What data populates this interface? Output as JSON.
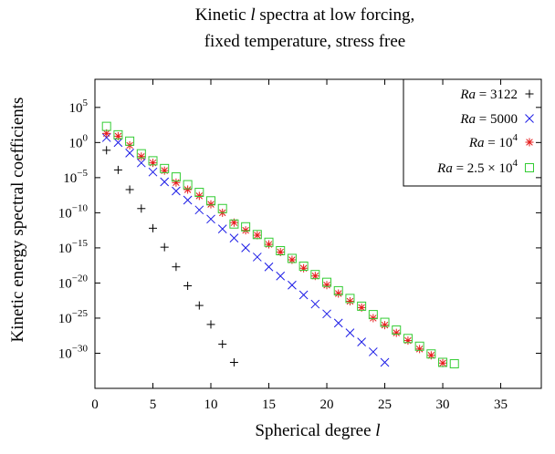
{
  "chart_data": {
    "type": "scatter",
    "title": [
      "Kinetic l spectra at low forcing,",
      "fixed temperature, stress free"
    ],
    "xlabel": "Spherical degree l",
    "ylabel": "Kinetic energy spectral coefficients",
    "xlim": [
      0,
      38.5
    ],
    "ylim_log10": [
      -35,
      9
    ],
    "y_scale": "log",
    "grid": false,
    "legend_position": "top-right",
    "x_ticks": [
      0,
      5,
      10,
      15,
      20,
      25,
      30,
      35
    ],
    "y_ticks": [
      {
        "exp": 5,
        "label_base": "10",
        "label_exp": "5"
      },
      {
        "exp": 0,
        "label_base": "10",
        "label_exp": "0"
      },
      {
        "exp": -5,
        "label_base": "10",
        "label_exp": "−5"
      },
      {
        "exp": -10,
        "label_base": "10",
        "label_exp": "−10"
      },
      {
        "exp": -15,
        "label_base": "10",
        "label_exp": "−15"
      },
      {
        "exp": -20,
        "label_base": "10",
        "label_exp": "−20"
      },
      {
        "exp": -25,
        "label_base": "10",
        "label_exp": "−25"
      },
      {
        "exp": -30,
        "label_base": "10",
        "label_exp": "−30"
      }
    ],
    "series": [
      {
        "name": "Ra = 3122",
        "legend": {
          "ra": "Ra",
          "eq": " = 3122",
          "sup": ""
        },
        "marker": "plus",
        "color": "#000000",
        "x": [
          1,
          2,
          3,
          4,
          5,
          6,
          7,
          8,
          9,
          10,
          11,
          12
        ],
        "log10_y": [
          -1.1,
          -3.9,
          -6.7,
          -9.4,
          -12.2,
          -14.9,
          -17.7,
          -20.4,
          -23.2,
          -25.9,
          -28.7,
          -31.3
        ]
      },
      {
        "name": "Ra = 5000",
        "legend": {
          "ra": "Ra",
          "eq": " = 5000",
          "sup": ""
        },
        "marker": "cross",
        "color": "#1a1ae6",
        "x": [
          1,
          2,
          3,
          4,
          5,
          6,
          7,
          8,
          9,
          10,
          11,
          12,
          13,
          14,
          15,
          16,
          17,
          18,
          19,
          20,
          21,
          22,
          23,
          24,
          25
        ],
        "log10_y": [
          0.7,
          0.0,
          -1.5,
          -2.9,
          -4.2,
          -5.6,
          -6.9,
          -8.2,
          -9.6,
          -10.9,
          -12.3,
          -13.6,
          -15.0,
          -16.3,
          -17.7,
          -19.0,
          -20.3,
          -21.7,
          -23.0,
          -24.4,
          -25.7,
          -27.1,
          -28.4,
          -29.8,
          -31.3
        ]
      },
      {
        "name": "Ra = 10^4",
        "legend": {
          "ra": "Ra",
          "eq": " = 10",
          "sup": "4"
        },
        "marker": "star",
        "color": "#e61a1a",
        "x": [
          1,
          2,
          3,
          4,
          5,
          6,
          7,
          8,
          9,
          10,
          11,
          12,
          13,
          14,
          15,
          16,
          17,
          18,
          19,
          20,
          21,
          22,
          23,
          24,
          25,
          26,
          27,
          28,
          29,
          30
        ],
        "log10_y": [
          1.3,
          0.9,
          -0.4,
          -2.0,
          -2.9,
          -4.0,
          -5.7,
          -6.7,
          -7.6,
          -8.8,
          -10.0,
          -11.4,
          -12.5,
          -13.2,
          -14.5,
          -15.6,
          -16.7,
          -17.9,
          -19.0,
          -20.3,
          -21.5,
          -22.6,
          -23.5,
          -25.0,
          -26.0,
          -27.1,
          -28.2,
          -29.4,
          -30.3,
          -31.4
        ]
      },
      {
        "name": "Ra = 2.5 × 10^4",
        "legend": {
          "ra": "Ra",
          "eq": " = 2.5 × 10",
          "sup": "4"
        },
        "marker": "square",
        "color": "#33cc33",
        "x": [
          1,
          2,
          3,
          4,
          5,
          6,
          7,
          8,
          9,
          10,
          11,
          12,
          13,
          14,
          15,
          16,
          17,
          18,
          19,
          20,
          21,
          22,
          23,
          24,
          25,
          26,
          27,
          28,
          29,
          30,
          31
        ],
        "log10_y": [
          2.3,
          1.1,
          0.2,
          -1.6,
          -2.6,
          -3.7,
          -4.9,
          -6.0,
          -7.1,
          -8.3,
          -9.4,
          -11.6,
          -12.0,
          -13.1,
          -14.2,
          -15.4,
          -16.5,
          -17.6,
          -18.8,
          -19.9,
          -21.1,
          -22.2,
          -23.3,
          -24.5,
          -25.6,
          -26.7,
          -27.9,
          -29.0,
          -30.1,
          -31.3,
          -31.5
        ]
      }
    ]
  }
}
